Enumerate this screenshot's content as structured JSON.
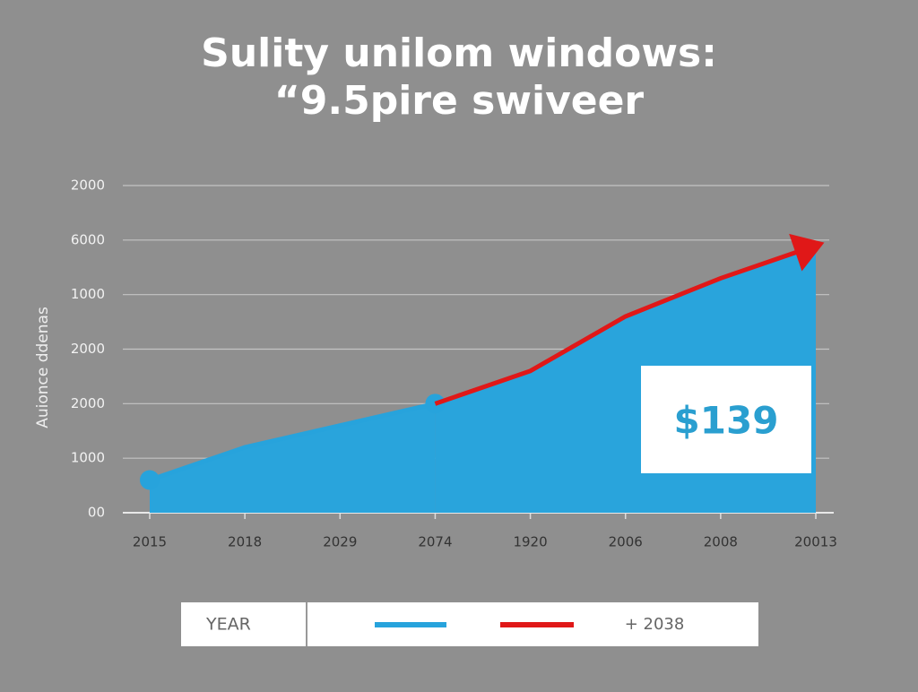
{
  "chart_data": {
    "type": "area-line",
    "title": [
      "Sulity unilom windows:",
      "“9.5pire swiveer"
    ],
    "y_label": "Auionce ddenas",
    "categories": [
      "2015",
      "2018",
      "2029",
      "2074",
      "1920",
      "2006",
      "2008",
      "20013"
    ],
    "series": [
      {
        "color": "#27a3dc",
        "values": [
          0.6,
          1.2,
          1.6,
          2.0,
          null,
          null,
          null,
          null
        ]
      },
      {
        "color": "#e01818",
        "values": [
          null,
          null,
          null,
          2.0,
          2.6,
          3.6,
          4.3,
          4.9
        ]
      }
    ],
    "area_color": "#29a4dc",
    "ylim": [
      0,
      6
    ],
    "yticks": [
      {
        "value": 0,
        "label": "00"
      },
      {
        "value": 1,
        "label": "1000"
      },
      {
        "value": 2,
        "label": "2000"
      },
      {
        "value": 3,
        "label": "2000"
      },
      {
        "value": 4,
        "label": "1000"
      },
      {
        "value": 5,
        "label": "6000"
      },
      {
        "value": 6,
        "label": "2000"
      }
    ],
    "grid": true,
    "annotation": "$139",
    "legend": {
      "title": "YEAR",
      "note": "+ 2038"
    }
  }
}
